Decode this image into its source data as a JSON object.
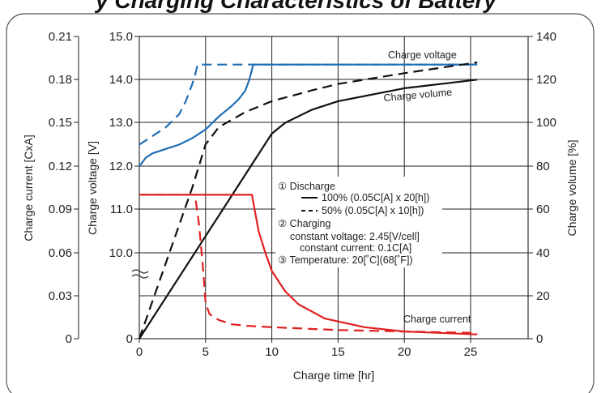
{
  "title_fragment": "y Charging Characteristics of Battery",
  "chart_data": {
    "type": "line",
    "xlabel": "Charge time [hr]",
    "x_ticks": [
      0,
      5,
      10,
      15,
      20,
      25
    ],
    "xlim": [
      0,
      30
    ],
    "axes": {
      "charge_current": {
        "label": "Charge current [CxA]",
        "ticks": [
          "0.21",
          "0.18",
          "0.15",
          "0.12",
          "0.09",
          "0.06",
          "0.03",
          "0"
        ],
        "range": [
          0,
          0.21
        ]
      },
      "charge_voltage": {
        "label": "Charge voltage [V]",
        "ticks": [
          "15.0",
          "14.0",
          "13.0",
          "12.0",
          "11.0",
          "10.0",
          "0"
        ],
        "range": [
          10.0,
          15.0
        ],
        "axis_break": true
      },
      "charge_volume": {
        "label": "Charge volume [%]",
        "ticks": [
          "140",
          "120",
          "100",
          "80",
          "60",
          "40",
          "20",
          "0"
        ],
        "range": [
          0,
          140
        ]
      }
    },
    "grid": true,
    "series": [
      {
        "name": "Charge voltage",
        "axis": "charge_voltage",
        "style": "solid",
        "color": "#1f6eb3",
        "x": [
          0,
          0.5,
          1,
          2,
          3,
          4,
          5,
          5.5,
          6,
          7,
          7.5,
          8,
          8.3,
          8.6,
          10,
          15,
          20,
          25.5
        ],
        "y": [
          12.0,
          12.2,
          12.3,
          12.4,
          12.5,
          12.65,
          12.85,
          13.0,
          13.15,
          13.4,
          13.55,
          13.75,
          14.0,
          14.35,
          14.35,
          14.35,
          14.35,
          14.35
        ]
      },
      {
        "name": "",
        "axis": "charge_voltage",
        "style": "dashed",
        "color": "#1f6eb3",
        "x": [
          0,
          1,
          2,
          3,
          3.5,
          4,
          4.2,
          4.4,
          5,
          10,
          15,
          20,
          25.5
        ],
        "y": [
          12.5,
          12.7,
          12.9,
          13.2,
          13.5,
          13.9,
          14.1,
          14.35,
          14.35,
          14.35,
          14.35,
          14.35,
          14.35
        ]
      },
      {
        "name": "Charge volume",
        "axis": "charge_volume",
        "style": "solid",
        "color": "#111111",
        "x": [
          0,
          10,
          11,
          13,
          15,
          20,
          25.5
        ],
        "y": [
          0,
          95,
          100,
          106,
          110,
          116,
          120
        ]
      },
      {
        "name": "",
        "axis": "charge_volume",
        "style": "dashed",
        "color": "#111111",
        "x": [
          0,
          4,
          5,
          6,
          8,
          10,
          13,
          15,
          20,
          25.5
        ],
        "y": [
          0,
          70,
          90,
          98,
          105,
          110,
          115,
          118,
          123,
          128
        ]
      },
      {
        "name": "Charge current",
        "axis": "charge_current",
        "style": "solid",
        "color": "#e02020",
        "x": [
          0,
          8.5,
          8.7,
          9,
          9.5,
          10,
          11,
          12,
          14,
          17,
          20,
          25.5
        ],
        "y": [
          0.1,
          0.1,
          0.09,
          0.075,
          0.06,
          0.047,
          0.033,
          0.024,
          0.014,
          0.008,
          0.005,
          0.003
        ]
      },
      {
        "name": "",
        "axis": "charge_current",
        "style": "dashed",
        "color": "#e02020",
        "x": [
          0,
          4.2,
          4.5,
          4.8,
          5,
          5.3,
          6,
          7,
          8,
          10,
          15,
          20,
          25.5
        ],
        "y": [
          0.1,
          0.1,
          0.08,
          0.05,
          0.025,
          0.017,
          0.013,
          0.01,
          0.009,
          0.008,
          0.006,
          0.005,
          0.004
        ]
      }
    ],
    "legend_lines": [
      "① Discharge",
      "100% (0.05C[A] x 20[h])",
      "50% (0.05C[A] x 10[h])",
      "② Charging",
      "constant voltage: 2.45[V/cell]",
      "constant current: 0.1C[A]",
      "③ Temperature: 20[˚C](68[˚F])"
    ]
  }
}
